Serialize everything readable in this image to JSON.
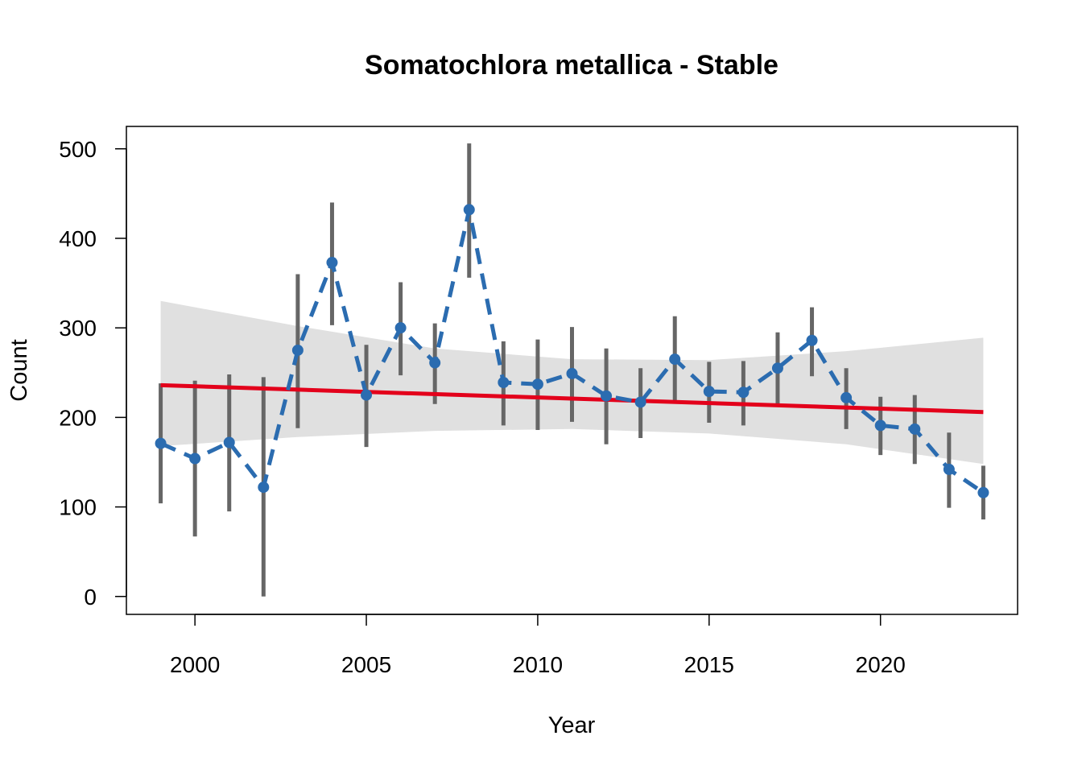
{
  "chart_data": {
    "type": "line",
    "title": "Somatochlora metallica - Stable",
    "xlabel": "Year",
    "ylabel": "Count",
    "xlim": [
      1998,
      2024
    ],
    "ylim": [
      -20,
      525
    ],
    "x_ticks": [
      2000,
      2005,
      2010,
      2015,
      2020
    ],
    "y_ticks": [
      0,
      100,
      200,
      300,
      400,
      500
    ],
    "grid": false,
    "legend": "none",
    "colors": {
      "observed": "#2b6cb0",
      "trend": "#e3001b",
      "error_bars": "#666666",
      "confidence_band": "#e0e0e0"
    },
    "series": [
      {
        "x": [
          1999,
          2000,
          2001,
          2002,
          2003,
          2004,
          2005,
          2006,
          2007,
          2008,
          2009,
          2010,
          2011,
          2012,
          2013,
          2014,
          2015,
          2016,
          2017,
          2018,
          2019,
          2020,
          2021,
          2022,
          2023
        ],
        "values": [
          171,
          154,
          172,
          122,
          275,
          373,
          225,
          300,
          261,
          432,
          239,
          237,
          249,
          224,
          217,
          265,
          229,
          228,
          255,
          286,
          222,
          191,
          187,
          142,
          116
        ],
        "lower": [
          104,
          67,
          95,
          0,
          188,
          303,
          167,
          247,
          215,
          356,
          191,
          186,
          195,
          170,
          177,
          216,
          194,
          191,
          213,
          246,
          187,
          158,
          148,
          99,
          86
        ],
        "upper": [
          238,
          241,
          248,
          245,
          360,
          440,
          281,
          351,
          305,
          506,
          285,
          287,
          301,
          277,
          255,
          313,
          262,
          263,
          295,
          323,
          255,
          223,
          225,
          183,
          146
        ]
      },
      {
        "x": [
          1999,
          2023
        ],
        "values": [
          236,
          206
        ]
      },
      {
        "x": [
          1999,
          2003,
          2007,
          2011,
          2015,
          2019,
          2023
        ],
        "lower": [
          168,
          178,
          185,
          187,
          182,
          170,
          148
        ],
        "upper": [
          330,
          302,
          277,
          265,
          264,
          274,
          289
        ]
      }
    ]
  }
}
